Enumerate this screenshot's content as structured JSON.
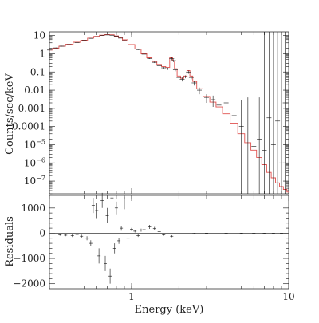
{
  "chart_data": [
    {
      "type": "line",
      "xscale": "log",
      "yscale": "log",
      "xlim": [
        0.3,
        10
      ],
      "ylim": [
        2e-08,
        16
      ],
      "ylabel": "Counts/sec/keV",
      "ytick_labels": [
        {
          "v": 10,
          "t": "10"
        },
        {
          "v": 1,
          "t": "1"
        },
        {
          "v": 0.1,
          "t": "0.1"
        },
        {
          "v": 0.01,
          "t": "0.01"
        },
        {
          "v": 0.001,
          "t": "0.001"
        },
        {
          "v": 0.0001,
          "t": "0.0001"
        },
        {
          "v": 1e-05,
          "t": "10",
          "sup": "−5"
        },
        {
          "v": 1e-06,
          "t": "10",
          "sup": "−6"
        },
        {
          "v": 1e-07,
          "t": "10",
          "sup": "−7"
        }
      ],
      "series": [
        {
          "role": "model",
          "color": "#e0504e",
          "x": [
            0.3,
            0.33,
            0.36,
            0.4,
            0.45,
            0.5,
            0.55,
            0.6,
            0.65,
            0.7,
            0.75,
            0.8,
            0.85,
            0.9,
            1.0,
            1.1,
            1.2,
            1.3,
            1.4,
            1.5,
            1.6,
            1.7,
            1.8,
            1.85,
            1.9,
            2.0,
            2.1,
            2.2,
            2.3,
            2.4,
            2.5,
            2.7,
            3.0,
            3.3,
            3.6,
            4.0,
            4.5,
            5.0,
            5.5,
            6.0,
            6.5,
            7.0,
            7.5,
            8.0,
            8.5,
            9.0,
            9.5,
            10.0
          ],
          "y": [
            1.6,
            2.0,
            2.6,
            3.3,
            4.3,
            5.6,
            7.2,
            9.0,
            10.5,
            11.3,
            11.0,
            9.6,
            7.8,
            5.8,
            3.2,
            1.8,
            1.0,
            0.6,
            0.38,
            0.26,
            0.2,
            0.18,
            0.6,
            0.4,
            0.15,
            0.06,
            0.045,
            0.06,
            0.12,
            0.06,
            0.03,
            0.012,
            0.0045,
            0.0022,
            0.0012,
            0.0005,
            0.00015,
            4e-05,
            1.3e-05,
            5e-06,
            2e-06,
            8e-07,
            3e-07,
            1.5e-07,
            8e-08,
            5e-08,
            3.5e-08,
            2.5e-08
          ]
        },
        {
          "role": "data",
          "color": "#111111",
          "x": [
            0.3,
            0.33,
            0.36,
            0.4,
            0.45,
            0.5,
            0.55,
            0.6,
            0.65,
            0.7,
            0.75,
            0.8,
            0.85,
            0.9,
            1.0,
            1.1,
            1.2,
            1.3,
            1.4,
            1.5,
            1.6,
            1.7,
            1.8,
            1.85,
            1.9,
            2.0,
            2.1,
            2.2,
            2.3,
            2.4,
            2.5,
            2.7,
            3.0,
            3.3,
            3.6,
            4.0,
            4.5,
            5.0,
            5.5,
            6.0,
            6.5,
            7.0,
            7.5,
            8.0,
            8.5,
            9.0,
            9.5
          ],
          "y": [
            1.6,
            2.1,
            2.6,
            3.2,
            4.1,
            5.4,
            7.0,
            8.6,
            10.0,
            10.8,
            10.4,
            9.0,
            7.2,
            5.3,
            3.0,
            1.7,
            0.95,
            0.55,
            0.34,
            0.22,
            0.17,
            0.15,
            0.55,
            0.42,
            0.13,
            0.05,
            0.04,
            0.055,
            0.1,
            0.05,
            0.025,
            0.01,
            0.004,
            0.003,
            0.0015,
            0.002,
            0.0004,
            0.0001,
            3e-05,
            8e-06,
            2e-05,
            5e-06,
            0.0003,
            1e-05,
            0.0002,
            1e-06,
            0.002
          ],
          "err_lo": [
            1.5,
            2.0,
            2.5,
            3.1,
            4.0,
            5.3,
            6.9,
            8.5,
            9.9,
            10.7,
            10.3,
            8.9,
            7.1,
            5.2,
            2.9,
            1.6,
            0.9,
            0.52,
            0.31,
            0.2,
            0.15,
            0.13,
            0.45,
            0.35,
            0.11,
            0.04,
            0.03,
            0.045,
            0.08,
            0.04,
            0.018,
            0.006,
            0.002,
            0.0012,
            0.0004,
            0.0006,
            1e-05,
            2e-08,
            2e-08,
            2e-08,
            2e-08,
            2e-08,
            2e-08,
            2e-08,
            2e-08,
            2e-08,
            2e-08
          ],
          "err_hi": [
            1.7,
            2.2,
            2.7,
            3.3,
            4.2,
            5.5,
            7.1,
            8.7,
            10.1,
            10.9,
            10.5,
            9.1,
            7.3,
            5.4,
            3.1,
            1.8,
            1.0,
            0.58,
            0.37,
            0.24,
            0.19,
            0.17,
            0.65,
            0.5,
            0.15,
            0.06,
            0.05,
            0.065,
            0.12,
            0.06,
            0.032,
            0.014,
            0.006,
            0.005,
            0.0035,
            0.005,
            0.002,
            0.003,
            0.004,
            0.0008,
            0.004,
            16,
            16,
            16,
            16,
            16,
            16
          ]
        }
      ]
    },
    {
      "type": "line",
      "xscale": "log",
      "xlim": [
        0.3,
        10
      ],
      "ylim": [
        -2200,
        1500
      ],
      "xlabel": "Energy (keV)",
      "ylabel": "Residuals",
      "ytick_labels": [
        {
          "v": 1000,
          "t": "1000"
        },
        {
          "v": 0,
          "t": "0"
        },
        {
          "v": -1000,
          "t": "−1000"
        },
        {
          "v": -2000,
          "t": "−2000"
        }
      ],
      "xtick_labels": [
        {
          "v": 1,
          "t": "1"
        },
        {
          "v": 10,
          "t": "10"
        }
      ],
      "series": [
        {
          "role": "residuals",
          "color": "#111111",
          "x": [
            0.35,
            0.38,
            0.42,
            0.45,
            0.48,
            0.52,
            0.55,
            0.57,
            0.6,
            0.62,
            0.65,
            0.68,
            0.7,
            0.73,
            0.75,
            0.78,
            0.8,
            0.83,
            0.86,
            0.9,
            0.95,
            1.0,
            1.05,
            1.1,
            1.15,
            1.2,
            1.3,
            1.4,
            1.5,
            1.6,
            1.8,
            2.0,
            2.5,
            3.0,
            4.0,
            5.0,
            6.0,
            7.0,
            8.0,
            9.0
          ],
          "y": [
            -60,
            -80,
            -100,
            -50,
            -120,
            -200,
            -400,
            1100,
            900,
            -900,
            1300,
            -1200,
            700,
            -1700,
            1400,
            -600,
            1000,
            -300,
            200,
            1200,
            -200,
            150,
            80,
            -100,
            120,
            140,
            250,
            180,
            60,
            -60,
            -120,
            -40,
            -20,
            -10,
            0,
            0,
            0,
            0,
            0,
            0
          ],
          "err": [
            40,
            40,
            50,
            40,
            60,
            80,
            120,
            300,
            300,
            300,
            300,
            300,
            300,
            300,
            300,
            200,
            250,
            120,
            100,
            250,
            80,
            60,
            50,
            50,
            60,
            60,
            80,
            70,
            50,
            40,
            40,
            30,
            20,
            15,
            10,
            10,
            10,
            10,
            10,
            10
          ]
        }
      ]
    }
  ]
}
